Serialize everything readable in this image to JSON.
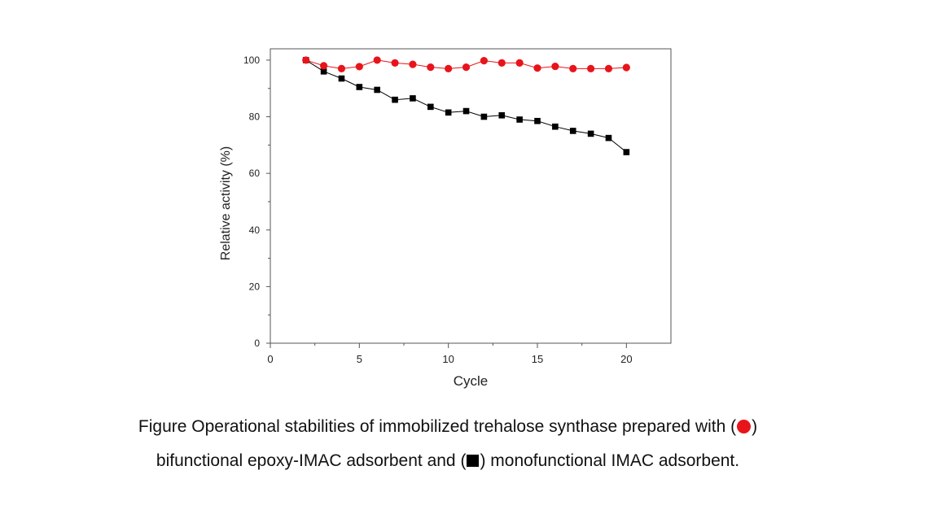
{
  "chart_data": {
    "type": "line",
    "title": "",
    "xlabel": "Cycle",
    "ylabel": "Relative activity (%)",
    "xlim": [
      0,
      22.5
    ],
    "ylim": [
      0,
      104
    ],
    "xticks": [
      0,
      5,
      10,
      15,
      20
    ],
    "yticks": [
      0,
      20,
      40,
      60,
      80,
      100
    ],
    "x_tick_labels": [
      "0",
      "5",
      "10",
      "15",
      "20"
    ],
    "y_tick_labels": [
      "0",
      "20",
      "40",
      "60",
      "80",
      "100"
    ],
    "grid": false,
    "x": [
      2,
      3,
      4,
      5,
      6,
      7,
      8,
      9,
      10,
      11,
      12,
      13,
      14,
      15,
      16,
      17,
      18,
      19,
      20
    ],
    "series": [
      {
        "name": "bifunctional epoxy-IMAC adsorbent",
        "marker": "circle",
        "color": "#e8141b",
        "values": [
          100,
          98,
          97,
          97.7,
          100,
          99,
          98.5,
          97.5,
          97,
          97.5,
          99.8,
          99,
          99,
          97.2,
          97.8,
          97,
          97,
          97,
          97.4
        ]
      },
      {
        "name": "monofunctional IMAC adsorbent",
        "marker": "square",
        "color": "#000000",
        "values": [
          100,
          96,
          93.5,
          90.5,
          89.5,
          86,
          86.5,
          83.5,
          81.5,
          82,
          80,
          80.5,
          79,
          78.5,
          76.5,
          75,
          74,
          72.5,
          67.5
        ]
      }
    ]
  },
  "caption": {
    "line1_text": "Figure Operational stabilities of immobilized trehalose synthase prepared with (",
    "line1_end": ")",
    "line2_start": "bifunctional epoxy-IMAC adsorbent and (",
    "line2_text": ") monofunctional IMAC adsorbent."
  }
}
